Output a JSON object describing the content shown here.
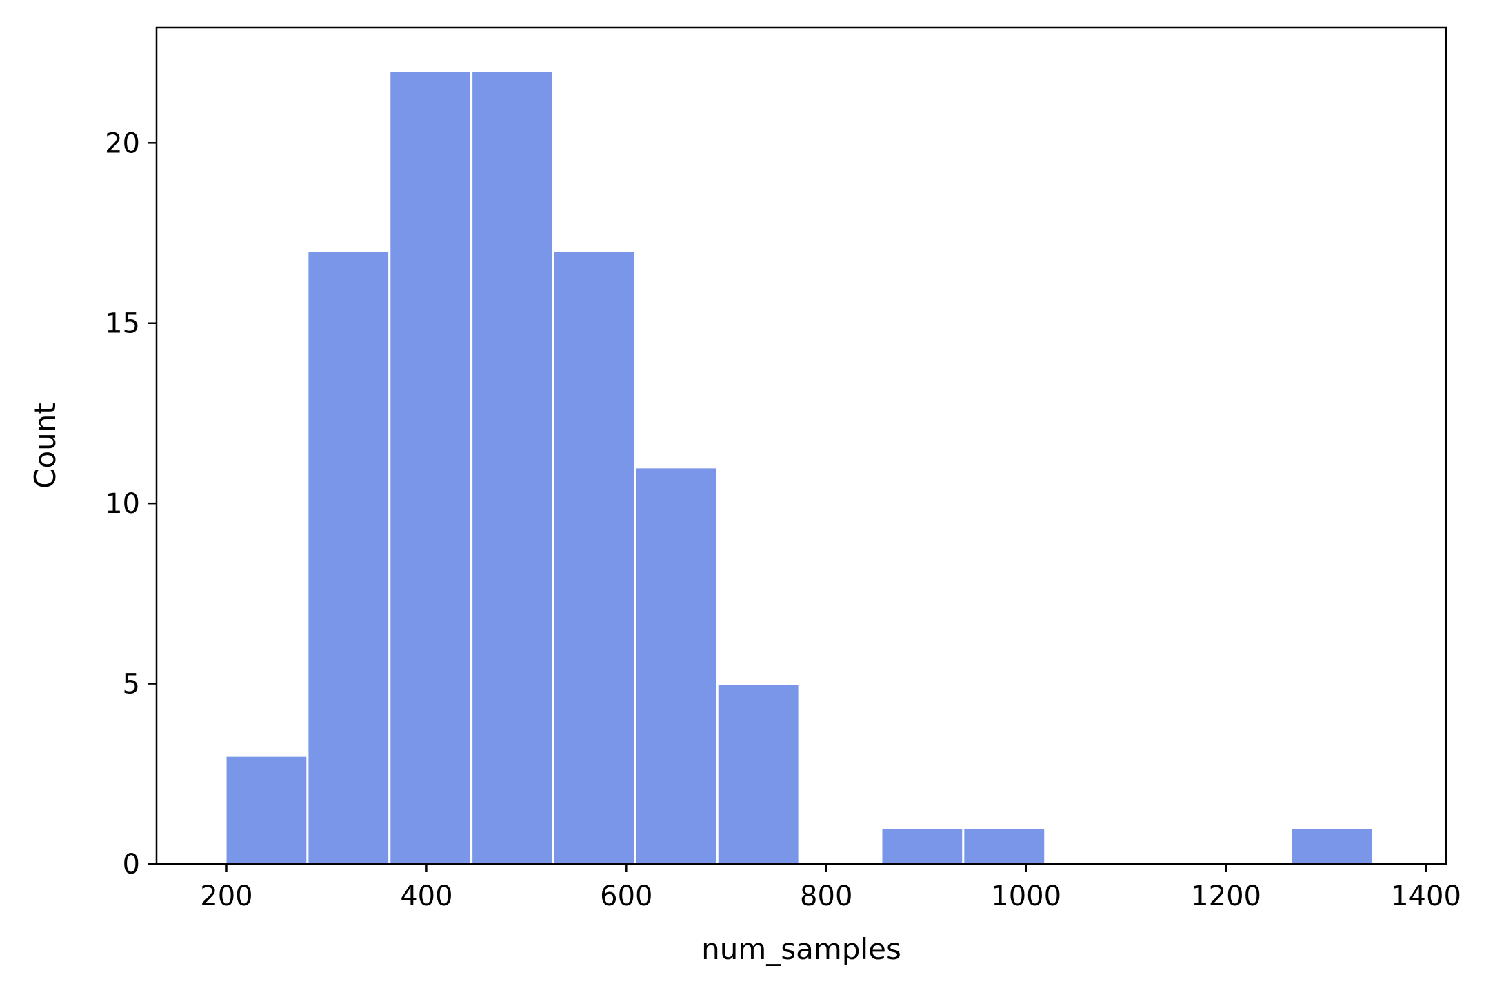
{
  "chart_data": {
    "type": "bar",
    "title": "",
    "xlabel": "num_samples",
    "ylabel": "Count",
    "xlim": [
      130,
      1420
    ],
    "ylim": [
      0,
      23.2
    ],
    "xticks": [
      200,
      400,
      600,
      800,
      1000,
      1200,
      1400
    ],
    "yticks": [
      0,
      5,
      10,
      15,
      20
    ],
    "grid": false,
    "bin_width": 82,
    "bars": [
      {
        "x0": 199,
        "x1": 281,
        "count": 3
      },
      {
        "x0": 281,
        "x1": 363,
        "count": 17
      },
      {
        "x0": 363,
        "x1": 445,
        "count": 22
      },
      {
        "x0": 445,
        "x1": 527,
        "count": 22
      },
      {
        "x0": 527,
        "x1": 609,
        "count": 17
      },
      {
        "x0": 609,
        "x1": 691,
        "count": 11
      },
      {
        "x0": 691,
        "x1": 773,
        "count": 5
      },
      {
        "x0": 773,
        "x1": 855,
        "count": 0
      },
      {
        "x0": 855,
        "x1": 937,
        "count": 1
      },
      {
        "x0": 937,
        "x1": 1019,
        "count": 1
      },
      {
        "x0": 1019,
        "x1": 1101,
        "count": 0
      },
      {
        "x0": 1101,
        "x1": 1183,
        "count": 0
      },
      {
        "x0": 1183,
        "x1": 1265,
        "count": 0
      },
      {
        "x0": 1265,
        "x1": 1347,
        "count": 1
      }
    ],
    "colors": {
      "bar_fill": "#7a96e8",
      "bar_edge": "#ffffff",
      "axis": "#000000"
    }
  }
}
